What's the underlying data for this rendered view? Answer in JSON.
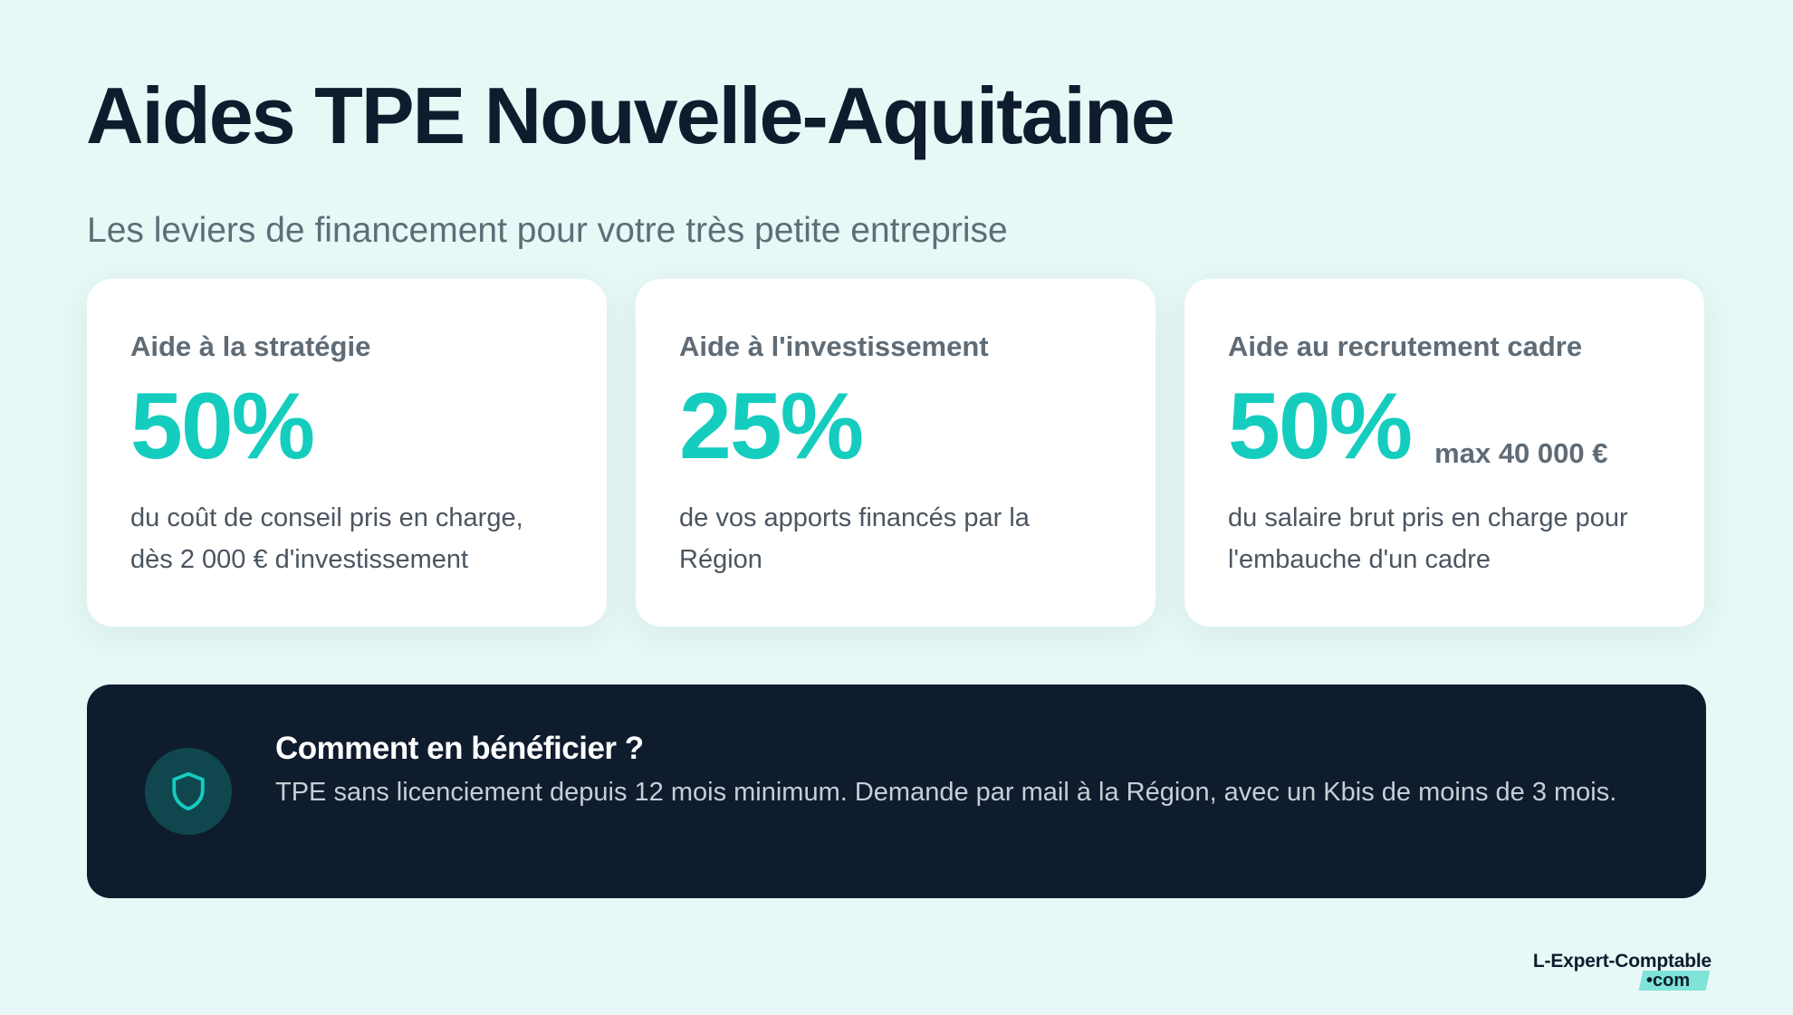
{
  "header": {
    "title": "Aides TPE Nouvelle-Aquitaine",
    "subtitle": "Les leviers de financement pour votre très petite entreprise"
  },
  "cards": [
    {
      "label": "Aide à la stratégie",
      "value": "50%",
      "extra": "",
      "description": "du coût de conseil pris en charge, dès 2 000 € d'investissement"
    },
    {
      "label": "Aide à l'investissement",
      "value": "25%",
      "extra": "",
      "description": "de vos apports financés par la Région"
    },
    {
      "label": "Aide au recrutement cadre",
      "value": "50%",
      "extra": "max 40 000 €",
      "description": "du salaire brut pris en charge pour l'embauche d'un cadre"
    }
  ],
  "info": {
    "icon": "shield-icon",
    "title": "Comment en bénéficier ?",
    "text": "TPE sans licenciement depuis 12 mois minimum. Demande par mail à la Région, avec un Kbis de moins de 3 mois."
  },
  "logo": {
    "main": "L-Expert-Comptable",
    "sub": "•com"
  },
  "colors": {
    "background": "#e7f8f6",
    "accent": "#14cdbf",
    "dark": "#0f1c2e",
    "card": "#ffffff"
  }
}
